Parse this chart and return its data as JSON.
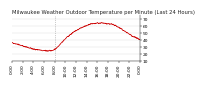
{
  "title": "Milwaukee Weather Outdoor Temperature per Minute (Last 24 Hours)",
  "title_fontsize": 3.8,
  "line_color": "#cc0000",
  "line_width": 0.5,
  "background_color": "#ffffff",
  "plot_bg_color": "#ffffff",
  "ylim": [
    10,
    75
  ],
  "yticks": [
    10,
    20,
    30,
    40,
    50,
    60,
    70
  ],
  "num_points": 1440,
  "vline_x": 480,
  "vline_color": "#999999",
  "tick_fontsize": 3.2,
  "grid_color": "#dddddd",
  "key_points": [
    [
      0,
      36
    ],
    [
      80,
      33
    ],
    [
      150,
      30
    ],
    [
      230,
      27
    ],
    [
      320,
      25
    ],
    [
      400,
      24
    ],
    [
      460,
      25
    ],
    [
      490,
      27
    ],
    [
      550,
      35
    ],
    [
      620,
      44
    ],
    [
      700,
      52
    ],
    [
      790,
      58
    ],
    [
      870,
      62
    ],
    [
      950,
      64
    ],
    [
      1020,
      64
    ],
    [
      1080,
      63
    ],
    [
      1140,
      62
    ],
    [
      1200,
      58
    ],
    [
      1260,
      53
    ],
    [
      1310,
      49
    ],
    [
      1360,
      45
    ],
    [
      1410,
      42
    ],
    [
      1439,
      40
    ]
  ],
  "noise_seed": 42,
  "noise_std": 0.9,
  "noise_smooth": 7
}
